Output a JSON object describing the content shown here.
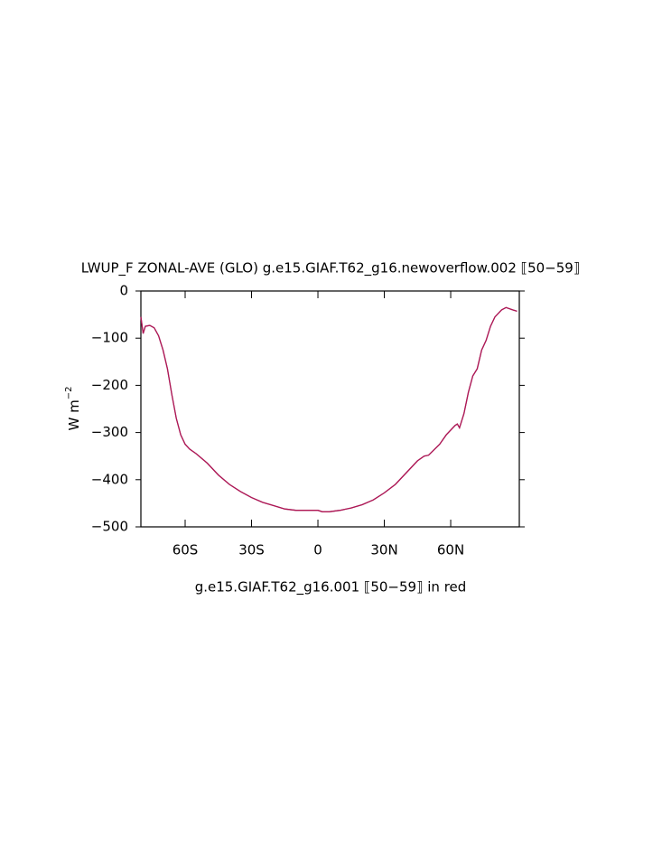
{
  "chart_data": {
    "type": "line",
    "title": "LWUP_F ZONAL-AVE (GLO) g.e15.GIAF.T62_g16.newoverflow.002 ⟦50−59⟧",
    "caption": "g.e15.GIAF.T62_g16.001 ⟦50−59⟧ in red",
    "ylabel": {
      "text": "W m",
      "superscript": "−2"
    },
    "x": [
      -80,
      -79,
      -78,
      -76,
      -74,
      -72,
      -70,
      -68,
      -66,
      -64,
      -62,
      -60,
      -58,
      -55,
      -50,
      -45,
      -40,
      -35,
      -30,
      -25,
      -20,
      -15,
      -10,
      -5,
      0,
      2,
      5,
      10,
      15,
      20,
      25,
      30,
      35,
      40,
      45,
      48,
      50,
      55,
      58,
      62,
      63,
      64,
      66,
      68,
      70,
      72,
      74,
      76,
      78,
      80,
      83,
      85,
      88,
      90
    ],
    "series": [
      {
        "color": "#6a2a8a",
        "values": [
          -55,
          -90,
          -75,
          -73,
          -78,
          -95,
          -125,
          -165,
          -220,
          -270,
          -305,
          -325,
          -335,
          -345,
          -365,
          -390,
          -410,
          -425,
          -438,
          -448,
          -455,
          -462,
          -465,
          -465,
          -465,
          -468,
          -468,
          -465,
          -460,
          -453,
          -443,
          -428,
          -410,
          -385,
          -360,
          -350,
          -348,
          -325,
          -305,
          -285,
          -282,
          -290,
          -260,
          -215,
          -180,
          -165,
          -125,
          -105,
          -75,
          -55,
          -40,
          -35,
          -40,
          -43
        ]
      },
      {
        "color": "#d0103a",
        "values": [
          -55,
          -90,
          -75,
          -73,
          -78,
          -95,
          -125,
          -165,
          -220,
          -270,
          -305,
          -325,
          -335,
          -345,
          -365,
          -390,
          -410,
          -425,
          -438,
          -448,
          -455,
          -462,
          -465,
          -465,
          -465,
          -468,
          -468,
          -465,
          -460,
          -453,
          -443,
          -428,
          -410,
          -385,
          -360,
          -350,
          -348,
          -325,
          -305,
          -285,
          -282,
          -290,
          -260,
          -215,
          -180,
          -165,
          -125,
          -105,
          -75,
          -55,
          -40,
          -35,
          -40,
          -43
        ]
      }
    ],
    "xlim": [
      -80,
      91
    ],
    "xticks": [
      {
        "value": -60,
        "label": "60S"
      },
      {
        "value": -30,
        "label": "30S"
      },
      0,
      {
        "value": 30,
        "label": "30N"
      },
      {
        "value": 60,
        "label": "60N"
      }
    ],
    "ylim": [
      -500,
      0
    ],
    "yticks": [
      0,
      {
        "value": -100,
        "label": "−100"
      },
      {
        "value": -200,
        "label": "−200"
      },
      {
        "value": -300,
        "label": "−300"
      },
      {
        "value": -400,
        "label": "−400"
      },
      {
        "value": -500,
        "label": "−500"
      }
    ]
  }
}
